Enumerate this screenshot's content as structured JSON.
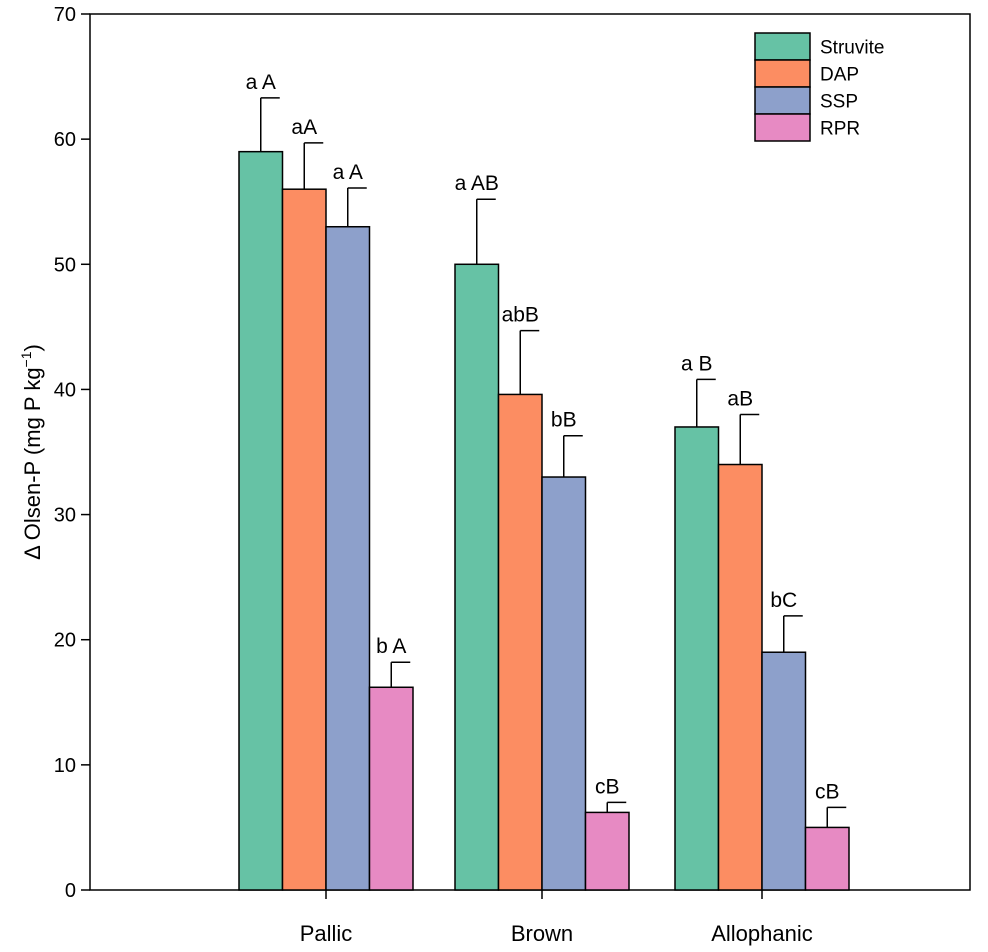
{
  "chart_data": {
    "type": "bar",
    "title": "",
    "xlabel": "",
    "ylabel": "Δ Olsen-P (mg P kg",
    "ylabel_superscript": "−1",
    "ylabel_suffix": ")",
    "ylim": [
      0,
      70
    ],
    "yticks": [
      0,
      10,
      20,
      30,
      40,
      50,
      60,
      70
    ],
    "categories": [
      "Pallic",
      "Brown",
      "Allophanic"
    ],
    "legend_position": "top-right",
    "grid": false,
    "series": [
      {
        "name": "Struvite",
        "color": "#66c2a5",
        "values": [
          59,
          50,
          37
        ],
        "errors": [
          4.3,
          5.2,
          3.8
        ],
        "labels": [
          "a A",
          "a AB",
          "a B"
        ]
      },
      {
        "name": "DAP",
        "color": "#fc8d62",
        "values": [
          56,
          39.6,
          34
        ],
        "errors": [
          3.7,
          5.1,
          4.0
        ],
        "labels": [
          "aA",
          "abB",
          "aB"
        ]
      },
      {
        "name": "SSP",
        "color": "#8da0cb",
        "values": [
          53,
          33,
          19
        ],
        "errors": [
          3.1,
          3.3,
          2.9
        ],
        "labels": [
          "a A",
          "bB",
          "bC"
        ]
      },
      {
        "name": "RPR",
        "color": "#e78ac3",
        "values": [
          16.2,
          6.2,
          5.0
        ],
        "errors": [
          2.0,
          0.8,
          1.6
        ],
        "labels": [
          "b A",
          "cB",
          "cB"
        ]
      }
    ]
  }
}
